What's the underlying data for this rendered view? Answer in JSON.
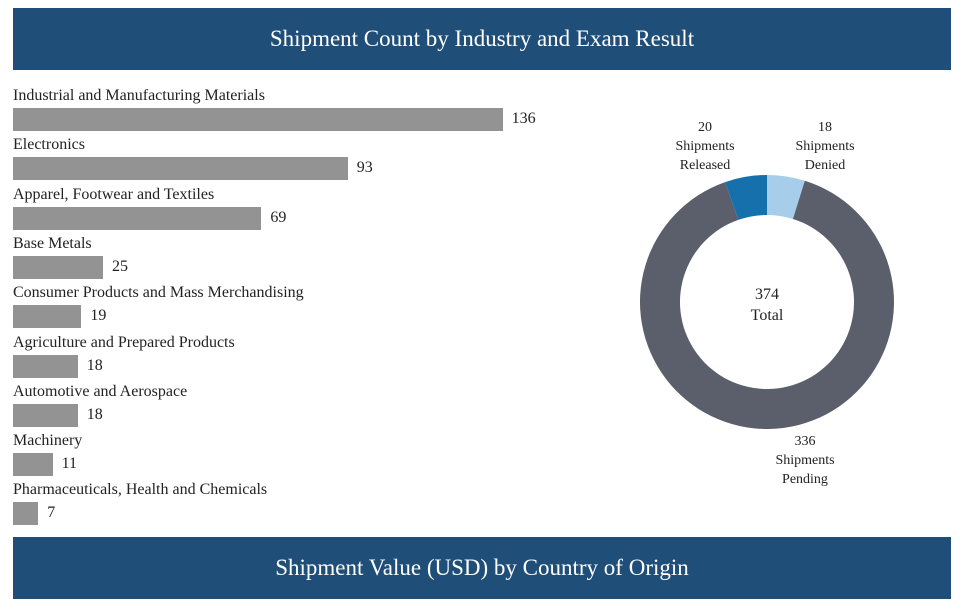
{
  "banners": {
    "top": "Shipment Count by Industry and Exam Result",
    "bottom": "Shipment Value (USD) by Country of Origin"
  },
  "chart_data": [
    {
      "type": "bar",
      "orientation": "horizontal",
      "categories": [
        "Industrial and Manufacturing Materials",
        "Electronics",
        "Apparel, Footwear and Textiles",
        "Base Metals",
        "Consumer Products and Mass Merchandising",
        "Agriculture and Prepared Products",
        "Automotive and Aerospace",
        "Machinery",
        "Pharmaceuticals, Health and Chemicals"
      ],
      "values": [
        136,
        93,
        69,
        25,
        19,
        18,
        18,
        11,
        7
      ],
      "color": "#939393",
      "grid": false
    },
    {
      "type": "pie",
      "variant": "donut",
      "center_value": "374",
      "center_label": "Total",
      "slices": [
        {
          "value": 18,
          "value_label": "18",
          "label_lines": [
            "Shipments",
            "Denied"
          ],
          "color": "#a6cde9"
        },
        {
          "value": 336,
          "value_label": "336",
          "label_lines": [
            "Shipments",
            "Pending"
          ],
          "color": "#5a5f6b"
        },
        {
          "value": 20,
          "value_label": "20",
          "label_lines": [
            "Shipments",
            "Released"
          ],
          "color": "#1670ab"
        }
      ]
    }
  ]
}
